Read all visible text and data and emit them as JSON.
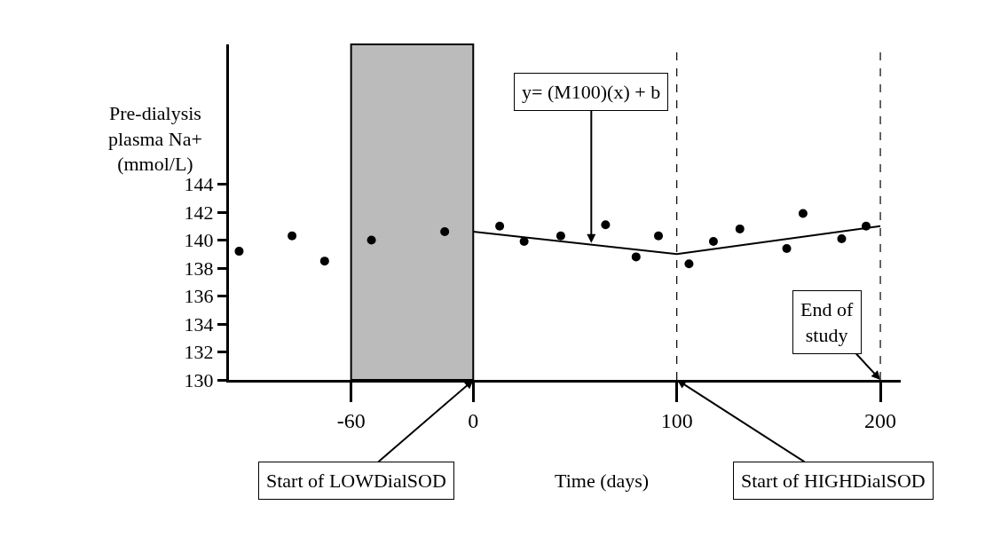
{
  "chart_data": {
    "type": "scatter",
    "xlabel": "Time (days)",
    "ylabel": "Pre-dialysis\nplasma Na+\n(mmol/L)",
    "xlim": [
      -120,
      210
    ],
    "xticks": [
      -60,
      0,
      100,
      200
    ],
    "ylim": [
      130,
      154
    ],
    "yticks": [
      130,
      132,
      134,
      136,
      138,
      140,
      142,
      144
    ],
    "marker": "circle",
    "series": [
      {
        "color": "#000000",
        "x": [
          -115,
          -89,
          -73,
          -50,
          -14,
          13,
          25,
          43,
          65,
          80,
          91,
          106,
          118,
          131,
          154,
          162,
          181,
          193
        ],
        "values": [
          139.2,
          140.3,
          138.5,
          140,
          140.6,
          141,
          139.9,
          140.3,
          141.1,
          138.8,
          140.3,
          138.3,
          139.9,
          140.8,
          139.4,
          141.9,
          140.1,
          141
        ]
      },
      {
        "type": "line",
        "color": "#000000",
        "marker": "none",
        "line_style": "solid",
        "x": [
          0,
          100,
          200
        ],
        "values": [
          140.6,
          139,
          141
        ]
      }
    ],
    "ref_lines": [
      {
        "axis": "x",
        "value": 100,
        "color": "#000000",
        "line_style": "dashed"
      },
      {
        "axis": "x",
        "value": 200,
        "color": "#000000",
        "line_style": "dashed"
      }
    ],
    "bands": [
      {
        "axis": "x",
        "from": -60,
        "to": 0,
        "color": "#bbbbbb"
      }
    ],
    "annotations": [
      {
        "text": "y= (M100)(x) + b",
        "x": 58,
        "y": 139.8
      },
      "Start of LOWDialSOD",
      "Start of HIGHDialSOD",
      {
        "text": "End of\nstudy",
        "x": 200,
        "y": 130
      }
    ]
  }
}
